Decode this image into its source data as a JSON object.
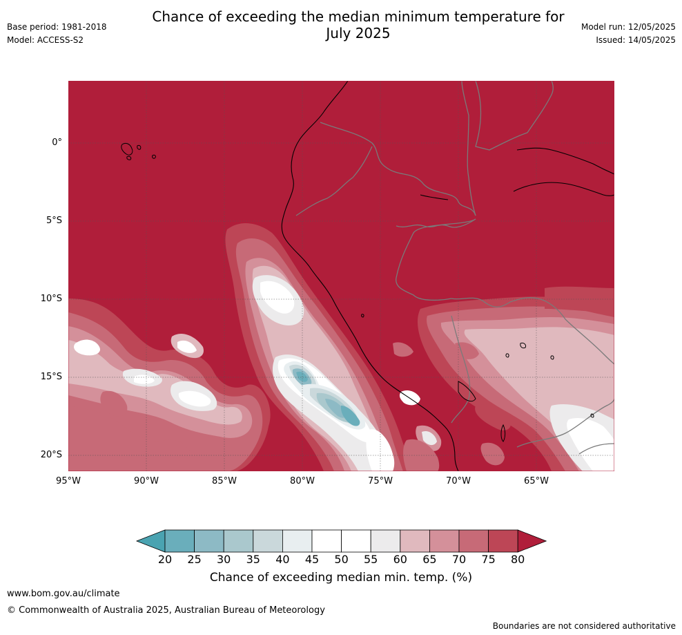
{
  "header": {
    "title_line1": "Chance of exceeding the median minimum temperature for",
    "title_line2": "July 2025",
    "base_period": "Base period: 1981-2018",
    "model": "Model: ACCESS-S2",
    "model_run": "Model run: 12/05/2025",
    "issued": "Issued: 14/05/2025"
  },
  "map": {
    "lat_labels": [
      "0°",
      "5°S",
      "10°S",
      "15°S",
      "20°S"
    ],
    "lon_labels": [
      "95°W",
      "90°W",
      "85°W",
      "80°W",
      "75°W",
      "70°W",
      "65°W"
    ]
  },
  "colorbar": {
    "tick_labels": [
      "20",
      "25",
      "30",
      "35",
      "40",
      "45",
      "50",
      "55",
      "60",
      "65",
      "70",
      "75",
      "80"
    ],
    "colors": [
      "#4aa3b1",
      "#6aaebb",
      "#8dbac5",
      "#aac8cd",
      "#cad8db",
      "#e8eef0",
      "#ffffff",
      "#ffffff",
      "#ecebec",
      "#e0b9be",
      "#d4909a",
      "#c76a77",
      "#bd4656",
      "#b01e3a"
    ],
    "label": "Chance of exceeding median min. temp. (%)"
  },
  "footer": {
    "website": "www.bom.gov.au/climate",
    "copyright": "© Commonwealth of Australia 2025, Australian Bureau of Meteorology",
    "disclaimer": "Boundaries are not considered authoritative"
  }
}
